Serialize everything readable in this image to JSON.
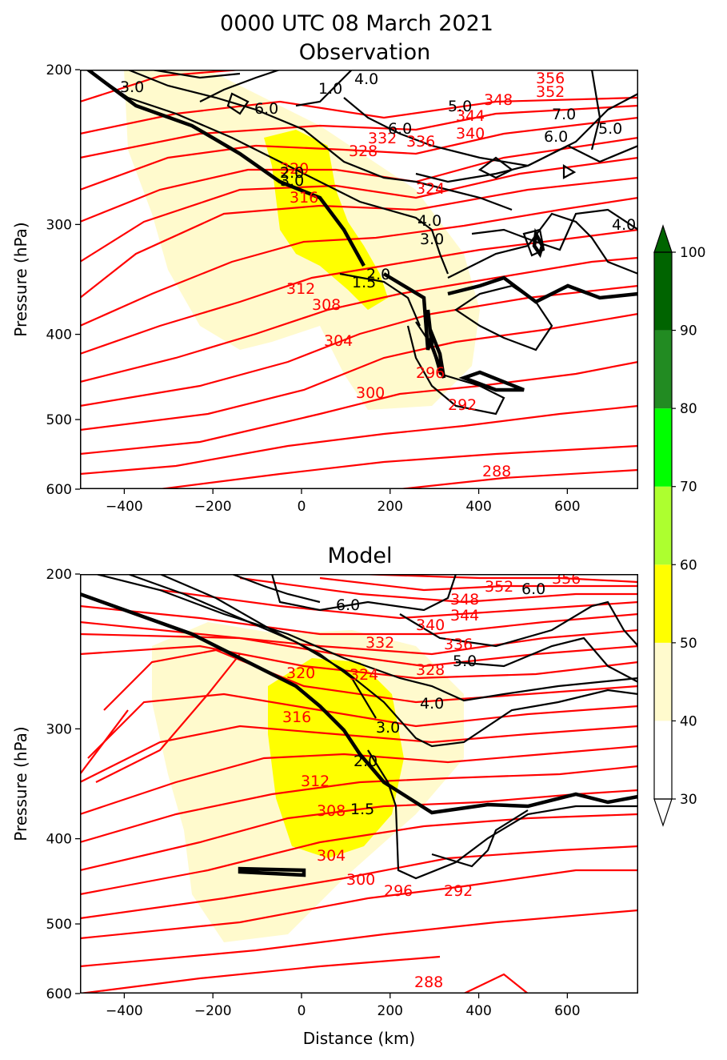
{
  "title": "0000 UTC 08 March 2021",
  "colors": {
    "theta": "#ff0000",
    "pv": "#000000",
    "rh_40_50": "#fffacd",
    "rh_50_60": "#ffff00"
  },
  "chart_data": [
    {
      "type": "contour",
      "title": "Observation",
      "xlabel": "",
      "ylabel": "Pressure (hPa)",
      "xlim": [
        -500,
        760
      ],
      "ylim": [
        600,
        200
      ],
      "yscale": "log",
      "xticks": [
        -400,
        -200,
        0,
        200,
        400,
        600
      ],
      "xtick_labels": [
        "−400",
        "−200",
        "0",
        "200",
        "400",
        "600"
      ],
      "yticks": [
        200,
        300,
        400,
        500,
        600
      ],
      "ytick_labels": [
        "200",
        "300",
        "400",
        "500",
        "600"
      ],
      "theta_labels": [
        "356",
        "352",
        "348",
        "344",
        "340",
        "336",
        "332",
        "328",
        "324",
        "320",
        "316",
        "312",
        "308",
        "304",
        "300",
        "296",
        "292",
        "288"
      ],
      "pv_labels": [
        "3.0",
        "1.0",
        "4.0",
        "6.0",
        "5.0",
        "7.0",
        "6.0",
        "6.0",
        "4.0",
        "3.0",
        "2.0",
        "1.5",
        "2.0",
        "4.0",
        "5.0",
        "3.0"
      ]
    },
    {
      "type": "contour",
      "title": "Model",
      "xlabel": "Distance (km)",
      "ylabel": "Pressure (hPa)",
      "xlim": [
        -500,
        760
      ],
      "ylim": [
        600,
        200
      ],
      "yscale": "log",
      "xticks": [
        -400,
        -200,
        0,
        200,
        400,
        600
      ],
      "xtick_labels": [
        "−400",
        "−200",
        "0",
        "200",
        "400",
        "600"
      ],
      "yticks": [
        200,
        300,
        400,
        500,
        600
      ],
      "ytick_labels": [
        "200",
        "300",
        "400",
        "500",
        "600"
      ],
      "theta_labels": [
        "356",
        "352",
        "348",
        "344",
        "340",
        "336",
        "332",
        "328",
        "324",
        "320",
        "316",
        "312",
        "308",
        "304",
        "300",
        "296",
        "292",
        "288"
      ],
      "pv_labels": [
        "6.0",
        "6.0",
        "5.0",
        "4.0",
        "3.0",
        "2.0",
        "1.5"
      ]
    }
  ],
  "colorbar": {
    "levels": [
      30,
      40,
      50,
      60,
      70,
      80,
      90,
      100
    ],
    "tick_labels": [
      "30",
      "40",
      "50",
      "60",
      "70",
      "80",
      "90",
      "100"
    ],
    "colors": [
      "#ffffff",
      "#fffacd",
      "#ffff00",
      "#adff2f",
      "#00ff00",
      "#228b22",
      "#006400"
    ],
    "extend": "both"
  }
}
